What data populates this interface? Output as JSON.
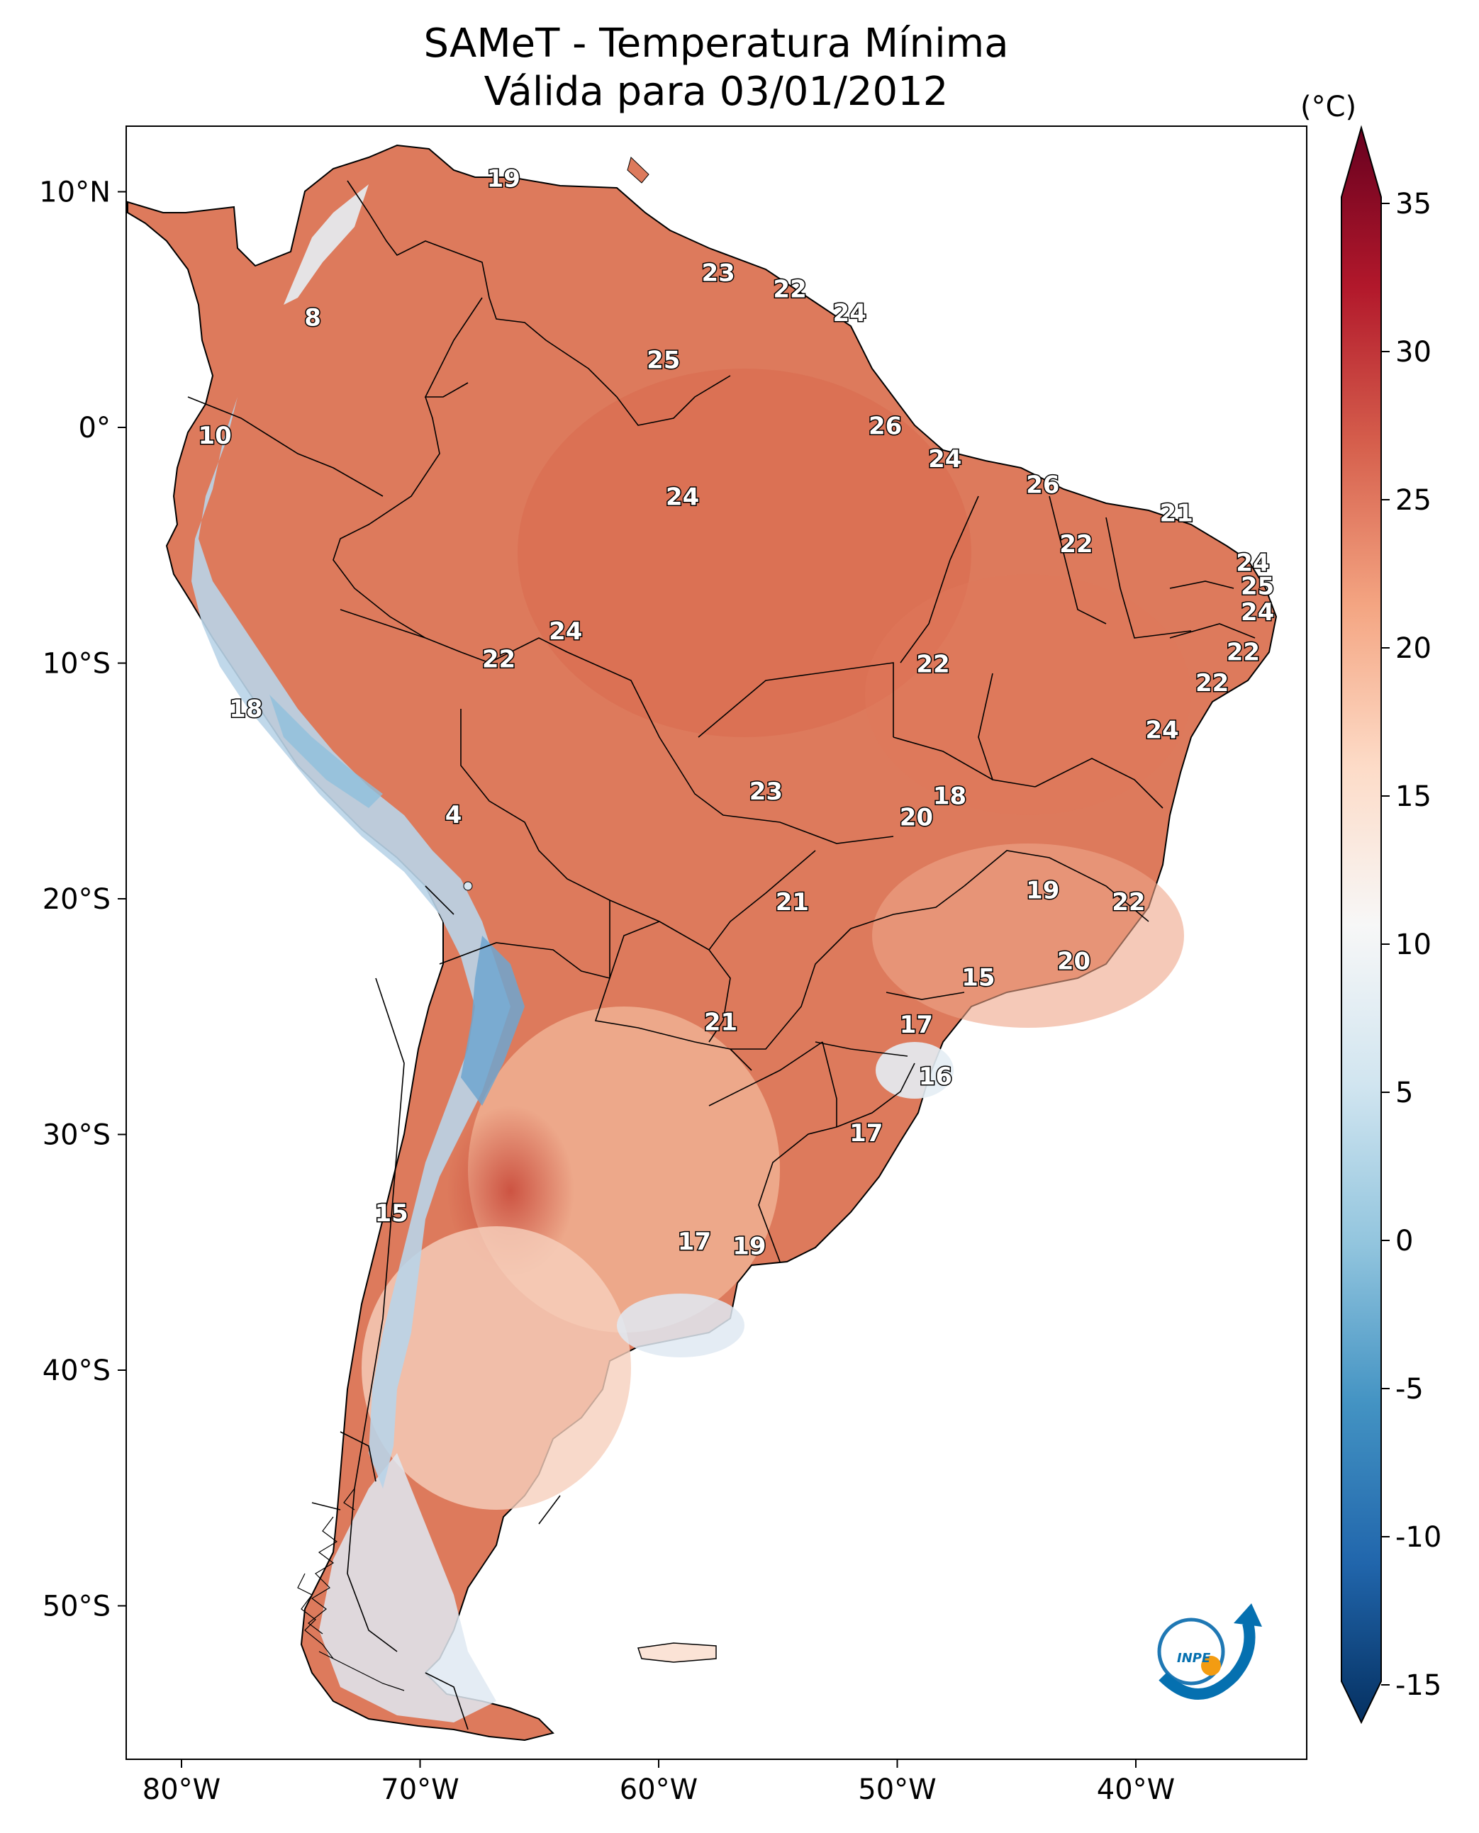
{
  "title": {
    "line1": "SAMeT - Temperatura Mínima",
    "line2": "Válida para 03/01/2012"
  },
  "colorbar": {
    "unit": "(°C)",
    "ticks": [
      "35",
      "30",
      "25",
      "20",
      "15",
      "10",
      "5",
      "0",
      "-5",
      "-10",
      "-15"
    ],
    "range": [
      -15,
      35
    ],
    "colors": [
      "#053061",
      "#2166ac",
      "#4393c3",
      "#92c5de",
      "#d1e5f0",
      "#f7f7f7",
      "#fddbc7",
      "#f4a582",
      "#d6604d",
      "#b2182b",
      "#67001f"
    ]
  },
  "axes": {
    "lon_labels": [
      "80°W",
      "70°W",
      "60°W",
      "50°W",
      "40°W"
    ],
    "lat_labels": [
      "10°N",
      "0°",
      "10°S",
      "20°S",
      "30°S",
      "40°S",
      "50°S"
    ]
  },
  "map": {
    "land_color": "#dd7a5c",
    "warm_color": "#d6604d",
    "mild_color": "#f2b89a",
    "cool_color": "#d7e6f0",
    "cold_color": "#6ea6cf",
    "border_color": "#000000"
  },
  "value_labels": [
    {
      "text": "19",
      "lon": -66.5,
      "lat": 10.5
    },
    {
      "text": "23",
      "lon": -57.5,
      "lat": 6.5
    },
    {
      "text": "22",
      "lon": -54.5,
      "lat": 5.8
    },
    {
      "text": "24",
      "lon": -52.0,
      "lat": 4.8
    },
    {
      "text": "8",
      "lon": -74.5,
      "lat": 4.6
    },
    {
      "text": "25",
      "lon": -59.8,
      "lat": 2.8
    },
    {
      "text": "26",
      "lon": -50.5,
      "lat": 0.0
    },
    {
      "text": "10",
      "lon": -78.6,
      "lat": -0.4
    },
    {
      "text": "24",
      "lon": -48.0,
      "lat": -1.4
    },
    {
      "text": "26",
      "lon": -43.9,
      "lat": -2.5
    },
    {
      "text": "24",
      "lon": -59.0,
      "lat": -3.0
    },
    {
      "text": "21",
      "lon": -38.3,
      "lat": -3.7
    },
    {
      "text": "22",
      "lon": -42.5,
      "lat": -5.0
    },
    {
      "text": "24",
      "lon": -35.1,
      "lat": -5.8
    },
    {
      "text": "25",
      "lon": -34.9,
      "lat": -6.8
    },
    {
      "text": "24",
      "lon": -34.9,
      "lat": -7.9
    },
    {
      "text": "24",
      "lon": -63.9,
      "lat": -8.7
    },
    {
      "text": "22",
      "lon": -66.7,
      "lat": -9.9
    },
    {
      "text": "22",
      "lon": -35.5,
      "lat": -9.6
    },
    {
      "text": "22",
      "lon": -48.5,
      "lat": -10.1
    },
    {
      "text": "22",
      "lon": -36.8,
      "lat": -10.9
    },
    {
      "text": "18",
      "lon": -77.3,
      "lat": -12.0
    },
    {
      "text": "24",
      "lon": -38.9,
      "lat": -12.9
    },
    {
      "text": "23",
      "lon": -55.5,
      "lat": -15.5
    },
    {
      "text": "18",
      "lon": -47.8,
      "lat": -15.7
    },
    {
      "text": "20",
      "lon": -49.2,
      "lat": -16.6
    },
    {
      "text": "4",
      "lon": -68.6,
      "lat": -16.5
    },
    {
      "text": "19",
      "lon": -43.9,
      "lat": -19.7
    },
    {
      "text": "22",
      "lon": -40.3,
      "lat": -20.2
    },
    {
      "text": "21",
      "lon": -54.4,
      "lat": -20.2
    },
    {
      "text": "20",
      "lon": -42.6,
      "lat": -22.7
    },
    {
      "text": "15",
      "lon": -46.6,
      "lat": -23.4
    },
    {
      "text": "21",
      "lon": -57.4,
      "lat": -25.3
    },
    {
      "text": "17",
      "lon": -49.2,
      "lat": -25.4
    },
    {
      "text": "16",
      "lon": -48.4,
      "lat": -27.6
    },
    {
      "text": "17",
      "lon": -51.3,
      "lat": -30.0
    },
    {
      "text": "15",
      "lon": -71.2,
      "lat": -33.4
    },
    {
      "text": "17",
      "lon": -58.5,
      "lat": -34.6
    },
    {
      "text": "19",
      "lon": -56.2,
      "lat": -34.8
    }
  ]
}
